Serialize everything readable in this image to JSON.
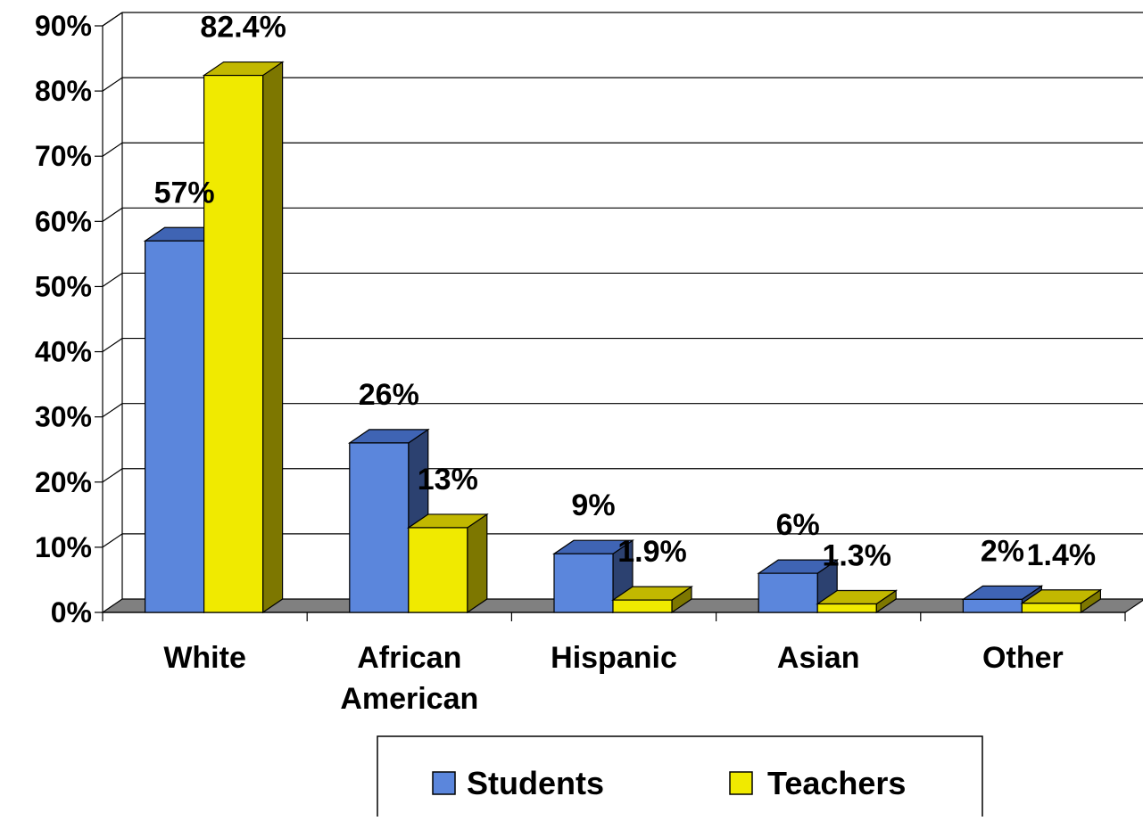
{
  "chart_data": {
    "type": "bar",
    "categories": [
      [
        "White"
      ],
      [
        "African",
        "American"
      ],
      [
        "Hispanic"
      ],
      [
        "Asian"
      ],
      [
        "Other"
      ]
    ],
    "series": [
      {
        "name": "Students",
        "values": [
          57,
          26,
          9,
          6,
          2
        ],
        "labels": [
          "57%",
          "26%",
          "9%",
          "6%",
          "2%"
        ],
        "color": "#5b86dc",
        "top_color": "#3f64b4",
        "side_color": "#2c4170"
      },
      {
        "name": "Teachers",
        "values": [
          82.4,
          13,
          1.9,
          1.3,
          1.4
        ],
        "labels": [
          "82.4%",
          "13%",
          "1.9%",
          "1.3%",
          "1.4%"
        ],
        "color": "#f0ea00",
        "top_color": "#c2b800",
        "side_color": "#7d7700"
      }
    ],
    "y_ticks": [
      "0%",
      "10%",
      "20%",
      "30%",
      "40%",
      "50%",
      "60%",
      "70%",
      "80%",
      "90%"
    ],
    "ylim": [
      0,
      90
    ],
    "grid": true,
    "three_d": true,
    "floor_color": "#808080",
    "legend_position": "bottom-center"
  }
}
